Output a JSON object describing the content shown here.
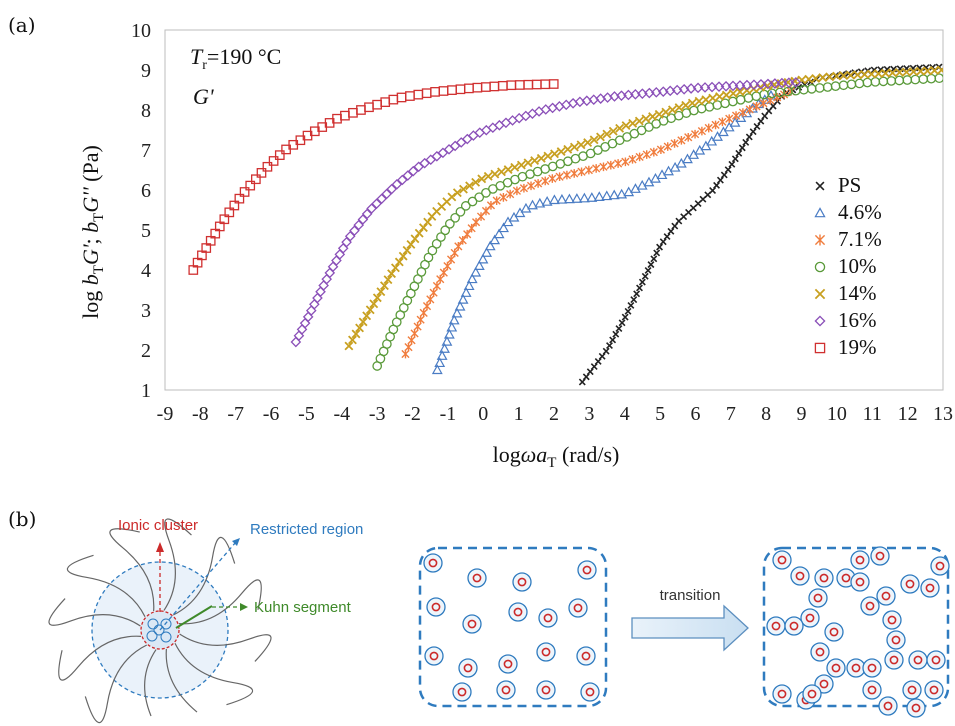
{
  "panel_a_label": "(a)",
  "panel_b_label": "(b)",
  "chart_data": {
    "type": "scatter",
    "xlabel_main": "log",
    "xlabel_omega": "ωa",
    "xlabel_sub": "T",
    "xlabel_unit": " (rad/s)",
    "ylabel_prefix": "log ",
    "ylabel_b1": "b",
    "ylabel_t1": "T",
    "ylabel_g1": "G'",
    "ylabel_sep": "; ",
    "ylabel_b2": "b",
    "ylabel_t2": "T",
    "ylabel_g2": "G''",
    "ylabel_unit": " (Pa)",
    "annotation_tr_t": "T",
    "annotation_tr_sub": "r",
    "annotation_tr_value": "=190 °C",
    "annotation_g": "G'",
    "xlim": [
      -9,
      13
    ],
    "ylim": [
      1,
      10
    ],
    "xticks": [
      "-9",
      "-8",
      "-7",
      "-6",
      "-5",
      "-4",
      "-3",
      "-2",
      "-1",
      "0",
      "1",
      "2",
      "3",
      "4",
      "5",
      "6",
      "7",
      "8",
      "9",
      "10",
      "11",
      "12",
      "13"
    ],
    "yticks": [
      "1",
      "2",
      "3",
      "4",
      "5",
      "6",
      "7",
      "8",
      "9",
      "10"
    ],
    "legend_position": "bottom-right",
    "series": [
      {
        "name": "PS",
        "marker": "x-small",
        "color": "#222222",
        "points": [
          [
            2.8,
            1.2
          ],
          [
            3.5,
            2.0
          ],
          [
            4.0,
            2.8
          ],
          [
            4.5,
            3.7
          ],
          [
            5.0,
            4.6
          ],
          [
            5.5,
            5.2
          ],
          [
            6.0,
            5.6
          ],
          [
            6.5,
            6.0
          ],
          [
            7.0,
            6.6
          ],
          [
            7.5,
            7.3
          ],
          [
            8.0,
            7.9
          ],
          [
            8.5,
            8.4
          ],
          [
            9.5,
            8.8
          ],
          [
            11,
            9.0
          ],
          [
            13,
            9.08
          ]
        ]
      },
      {
        "name": "4.6%",
        "marker": "triangle",
        "color": "#4a7cc4",
        "points": [
          [
            -1.3,
            1.5
          ],
          [
            -0.8,
            2.8
          ],
          [
            -0.3,
            3.8
          ],
          [
            0.2,
            4.6
          ],
          [
            0.7,
            5.2
          ],
          [
            1.3,
            5.6
          ],
          [
            2.0,
            5.75
          ],
          [
            3.0,
            5.8
          ],
          [
            4.0,
            5.9
          ],
          [
            4.7,
            6.2
          ],
          [
            5.5,
            6.6
          ],
          [
            6.3,
            7.1
          ],
          [
            7.0,
            7.6
          ],
          [
            7.7,
            8.1
          ],
          [
            8.2,
            8.4
          ]
        ]
      },
      {
        "name": "7.1%",
        "marker": "asterisk",
        "color": "#f07d3e",
        "points": [
          [
            -2.2,
            1.9
          ],
          [
            -1.7,
            2.9
          ],
          [
            -1.2,
            3.8
          ],
          [
            -0.7,
            4.6
          ],
          [
            -0.2,
            5.2
          ],
          [
            0.3,
            5.7
          ],
          [
            1.0,
            6.0
          ],
          [
            2.0,
            6.3
          ],
          [
            3.0,
            6.5
          ],
          [
            4.0,
            6.7
          ],
          [
            5.0,
            7.0
          ],
          [
            6.0,
            7.4
          ],
          [
            7.0,
            7.8
          ],
          [
            8.0,
            8.2
          ],
          [
            8.8,
            8.5
          ]
        ]
      },
      {
        "name": "10%",
        "marker": "circle",
        "color": "#5a9a3a",
        "points": [
          [
            -3.0,
            1.6
          ],
          [
            -2.5,
            2.6
          ],
          [
            -2.0,
            3.5
          ],
          [
            -1.5,
            4.4
          ],
          [
            -1.0,
            5.1
          ],
          [
            -0.5,
            5.6
          ],
          [
            0.2,
            6.0
          ],
          [
            1.0,
            6.3
          ],
          [
            2.0,
            6.6
          ],
          [
            3.0,
            6.9
          ],
          [
            4.0,
            7.3
          ],
          [
            5.0,
            7.7
          ],
          [
            6.0,
            8.0
          ],
          [
            7.0,
            8.2
          ],
          [
            8.0,
            8.4
          ],
          [
            9.0,
            8.5
          ],
          [
            10.0,
            8.6
          ],
          [
            11.0,
            8.7
          ],
          [
            12.0,
            8.75
          ],
          [
            13.0,
            8.8
          ]
        ]
      },
      {
        "name": "14%",
        "marker": "x",
        "color": "#c8a020",
        "points": [
          [
            -3.8,
            2.1
          ],
          [
            -3.2,
            3.0
          ],
          [
            -2.6,
            3.9
          ],
          [
            -2.0,
            4.7
          ],
          [
            -1.4,
            5.4
          ],
          [
            -0.8,
            5.9
          ],
          [
            0.0,
            6.3
          ],
          [
            1.0,
            6.6
          ],
          [
            2.0,
            6.9
          ],
          [
            3.0,
            7.2
          ],
          [
            4.0,
            7.6
          ],
          [
            5.0,
            7.9
          ],
          [
            6.0,
            8.2
          ],
          [
            7.0,
            8.4
          ],
          [
            8.0,
            8.6
          ],
          [
            9.0,
            8.75
          ],
          [
            10.0,
            8.85
          ],
          [
            11.0,
            8.9
          ],
          [
            12.0,
            8.95
          ],
          [
            13.0,
            9.0
          ]
        ]
      },
      {
        "name": "16%",
        "marker": "diamond",
        "color": "#8a4fb8",
        "points": [
          [
            -5.3,
            2.2
          ],
          [
            -4.8,
            3.1
          ],
          [
            -4.3,
            4.0
          ],
          [
            -3.8,
            4.8
          ],
          [
            -3.2,
            5.5
          ],
          [
            -2.5,
            6.1
          ],
          [
            -1.8,
            6.6
          ],
          [
            -1.0,
            7.0
          ],
          [
            -0.2,
            7.4
          ],
          [
            0.7,
            7.7
          ],
          [
            1.7,
            8.0
          ],
          [
            2.7,
            8.2
          ],
          [
            3.8,
            8.35
          ],
          [
            5.0,
            8.45
          ],
          [
            6.0,
            8.55
          ],
          [
            7.0,
            8.6
          ],
          [
            8.0,
            8.65
          ],
          [
            9.0,
            8.7
          ]
        ]
      },
      {
        "name": "19%",
        "marker": "square",
        "color": "#d03030",
        "points": [
          [
            -8.2,
            4.0
          ],
          [
            -7.8,
            4.6
          ],
          [
            -7.3,
            5.3
          ],
          [
            -6.8,
            5.9
          ],
          [
            -6.2,
            6.5
          ],
          [
            -5.6,
            7.0
          ],
          [
            -4.9,
            7.4
          ],
          [
            -4.1,
            7.8
          ],
          [
            -3.3,
            8.05
          ],
          [
            -2.4,
            8.3
          ],
          [
            -1.4,
            8.45
          ],
          [
            -0.3,
            8.55
          ],
          [
            0.8,
            8.62
          ],
          [
            2.0,
            8.65
          ]
        ]
      }
    ]
  },
  "diagram": {
    "ionic_cluster_label": "Ionic cluster",
    "restricted_region_label": "Restricted region",
    "kuhn_segment_label": "Kuhn segment",
    "transition_label": "transition",
    "colors": {
      "ionic": "#cc2a2a",
      "restricted": "#2f7bbf",
      "kuhn": "#3f8a2a",
      "box": "#2f7bbf"
    }
  }
}
